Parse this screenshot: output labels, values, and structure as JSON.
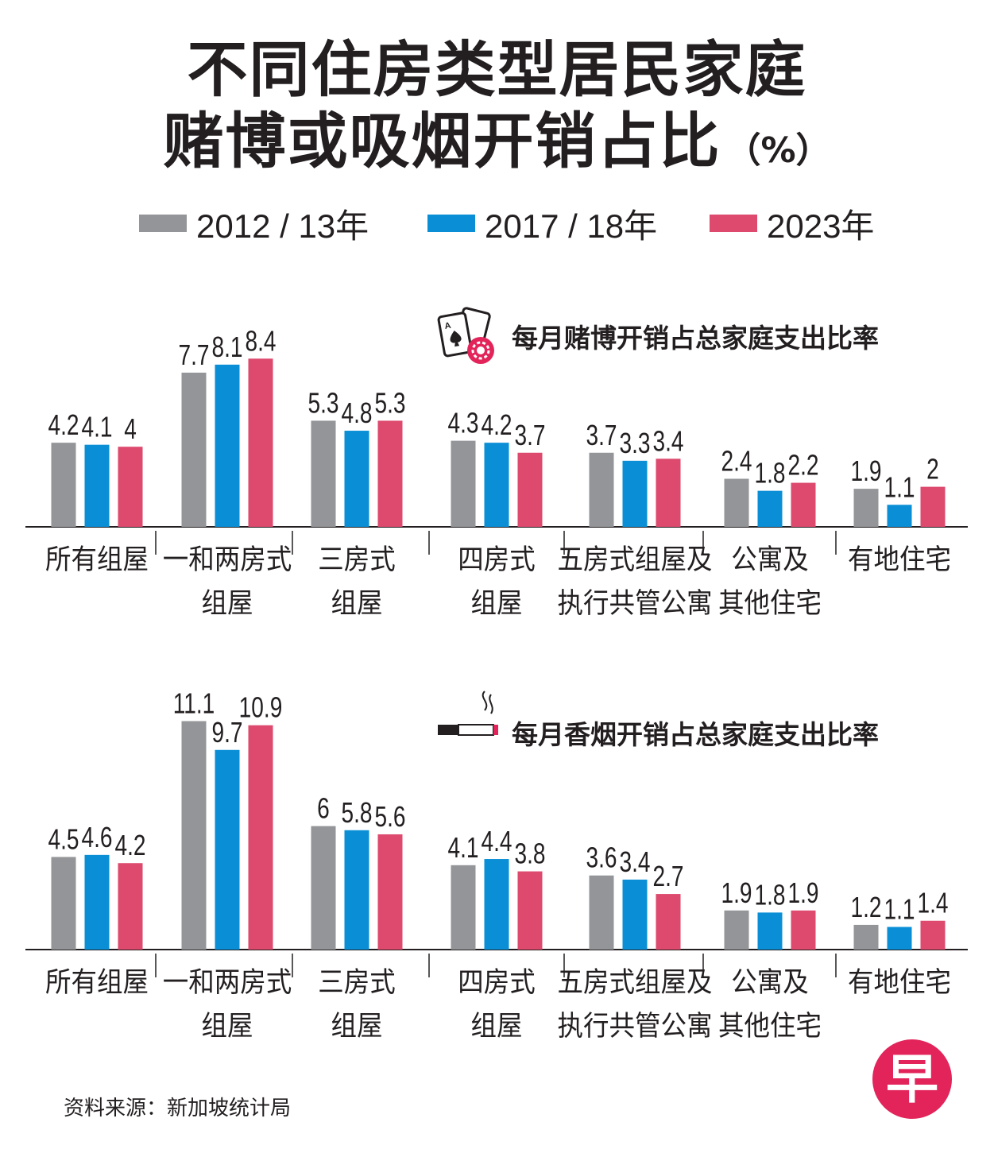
{
  "header": {
    "title_line1": "不同住房类型居民家庭",
    "title_line2": "赌博或吸烟开销占比",
    "unit": "（%）"
  },
  "legend": [
    {
      "label": "2012 / 13年",
      "color": "#939598"
    },
    {
      "label": "2017 / 18年",
      "color": "#0a8fd6"
    },
    {
      "label": "2023年",
      "color": "#dd4a6e"
    }
  ],
  "colors": {
    "series_2012": "#939598",
    "series_2017": "#0a8fd6",
    "series_2023": "#dd4a6e",
    "text": "#231f20",
    "logo": "#e2245a"
  },
  "icons": {
    "gambling": "playing-cards-chip-icon",
    "smoking": "cigarette-icon",
    "logo": "zaobao-logo-icon"
  },
  "chart_data": [
    {
      "type": "bar",
      "title": "每月赌博开销占总家庭支出比率",
      "categories": [
        [
          "所有组屋"
        ],
        [
          "一和两房式",
          "组屋"
        ],
        [
          "三房式",
          "组屋"
        ],
        [
          "四房式",
          "组屋"
        ],
        [
          "五房式组屋及",
          "执行共管公寓"
        ],
        [
          "公寓及",
          "其他住宅"
        ],
        [
          "有地住宅"
        ]
      ],
      "series": [
        {
          "name": "2012 / 13年",
          "values": [
            4.2,
            7.7,
            5.3,
            4.3,
            3.7,
            2.4,
            1.9
          ],
          "labels": [
            "4.2",
            "7.7",
            "5.3",
            "4.3",
            "3.7",
            "2.4",
            "1.9"
          ]
        },
        {
          "name": "2017 / 18年",
          "values": [
            4.1,
            8.1,
            4.8,
            4.2,
            3.3,
            1.8,
            1.1
          ],
          "labels": [
            "4.1",
            "8.1",
            "4.8",
            "4.2",
            "3.3",
            "1.8",
            "1.1"
          ]
        },
        {
          "name": "2023年",
          "values": [
            4,
            8.4,
            5.3,
            3.7,
            3.4,
            2.2,
            2
          ],
          "labels": [
            "4",
            "8.4",
            "5.3",
            "3.7",
            "3.4",
            "2.2",
            "2"
          ]
        }
      ],
      "grid": false,
      "legend": "top"
    },
    {
      "type": "bar",
      "title": "每月香烟开销占总家庭支出比率",
      "categories": [
        [
          "所有组屋"
        ],
        [
          "一和两房式",
          "组屋"
        ],
        [
          "三房式",
          "组屋"
        ],
        [
          "四房式",
          "组屋"
        ],
        [
          "五房式组屋及",
          "执行共管公寓"
        ],
        [
          "公寓及",
          "其他住宅"
        ],
        [
          "有地住宅"
        ]
      ],
      "series": [
        {
          "name": "2012 / 13年",
          "values": [
            4.5,
            11.1,
            6,
            4.1,
            3.6,
            1.9,
            1.2
          ],
          "labels": [
            "4.5",
            "11.1",
            "6",
            "4.1",
            "3.6",
            "1.9",
            "1.2"
          ]
        },
        {
          "name": "2017 / 18年",
          "values": [
            4.6,
            9.7,
            5.8,
            4.4,
            3.4,
            1.8,
            1.1
          ],
          "labels": [
            "4.6",
            "9.7",
            "5.8",
            "4.4",
            "3.4",
            "1.8",
            "1.1"
          ]
        },
        {
          "name": "2023年",
          "values": [
            4.2,
            10.9,
            5.6,
            3.8,
            2.7,
            1.9,
            1.4
          ],
          "labels": [
            "4.2",
            "10.9",
            "5.6",
            "3.8",
            "2.7",
            "1.9",
            "1.4"
          ]
        }
      ],
      "grid": false,
      "legend": "top"
    }
  ],
  "footer": {
    "source": "资料来源：新加坡统计局",
    "logo_text": "早"
  }
}
